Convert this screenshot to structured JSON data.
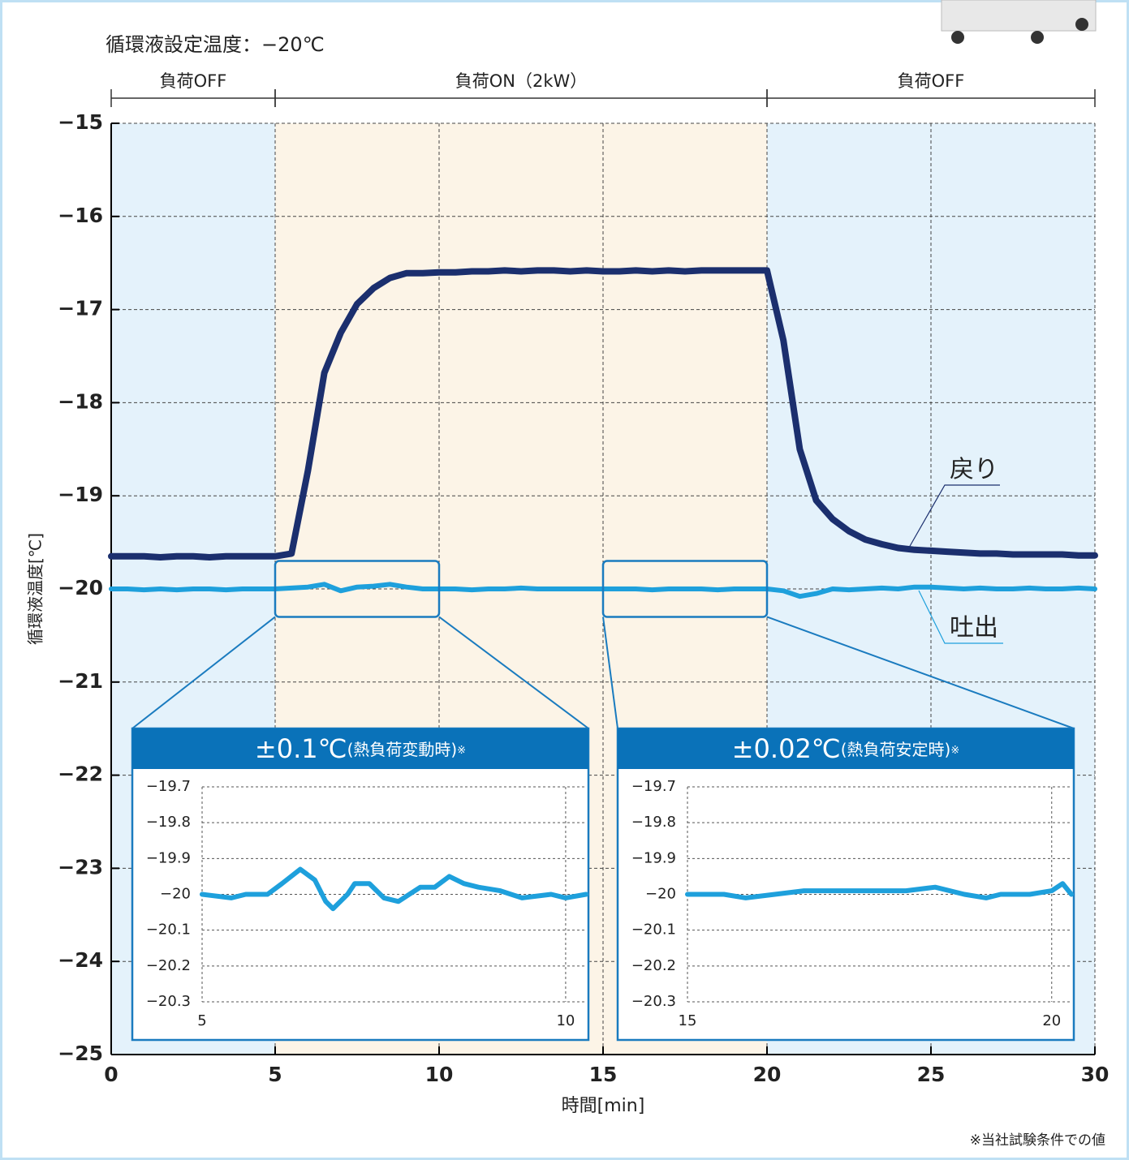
{
  "chart_data": [
    {
      "type": "line",
      "title": "循環液設定温度：−20℃",
      "x_label": "時間[min]",
      "y_label": "循環液温度[℃]",
      "note": "※当社試験条件での値",
      "regions": [
        {
          "label": "負荷OFF",
          "start": 0,
          "end": 5,
          "color": "#e4f2fb"
        },
        {
          "label": "負荷ON（2kW）",
          "start": 5,
          "end": 20,
          "color": "#fcf4e7"
        },
        {
          "label": "負荷OFF",
          "start": 20,
          "end": 30,
          "color": "#e4f2fb"
        }
      ],
      "x": [
        0,
        0.5,
        1,
        1.5,
        2,
        2.5,
        3,
        3.5,
        4,
        4.5,
        5,
        5.5,
        6,
        6.5,
        7,
        7.5,
        8,
        8.5,
        9,
        9.5,
        10,
        10.5,
        11,
        11.5,
        12,
        12.5,
        13,
        13.5,
        14,
        14.5,
        15,
        15.5,
        16,
        16.5,
        17,
        17.5,
        18,
        18.5,
        19,
        19.5,
        20,
        20.5,
        21,
        21.5,
        22,
        22.5,
        23,
        23.5,
        24,
        24.5,
        25,
        25.5,
        26,
        26.5,
        27,
        27.5,
        28,
        28.5,
        29,
        29.5,
        30
      ],
      "series": [
        {
          "name": "戻り",
          "color": "#1b2f6e",
          "values": [
            -19.65,
            -19.65,
            -19.65,
            -19.66,
            -19.65,
            -19.65,
            -19.66,
            -19.65,
            -19.65,
            -19.65,
            -19.65,
            -19.62,
            -18.73,
            -17.68,
            -17.25,
            -16.94,
            -16.77,
            -16.66,
            -16.61,
            -16.61,
            -16.6,
            -16.6,
            -16.59,
            -16.59,
            -16.58,
            -16.59,
            -16.58,
            -16.58,
            -16.59,
            -16.58,
            -16.59,
            -16.59,
            -16.58,
            -16.59,
            -16.58,
            -16.59,
            -16.58,
            -16.58,
            -16.58,
            -16.58,
            -16.58,
            -17.33,
            -18.5,
            -19.05,
            -19.25,
            -19.38,
            -19.47,
            -19.52,
            -19.56,
            -19.58,
            -19.59,
            -19.6,
            -19.61,
            -19.62,
            -19.62,
            -19.63,
            -19.63,
            -19.63,
            -19.63,
            -19.64,
            -19.64
          ]
        },
        {
          "name": "吐出",
          "color": "#1ea0dc",
          "values": [
            -20.0,
            -20.0,
            -20.01,
            -20.0,
            -20.01,
            -20.0,
            -20.0,
            -20.01,
            -20.0,
            -20.0,
            -20.0,
            -19.99,
            -19.98,
            -19.95,
            -20.02,
            -19.98,
            -19.97,
            -19.95,
            -19.98,
            -20.0,
            -20.0,
            -20.0,
            -20.01,
            -20.0,
            -20.0,
            -19.99,
            -20.0,
            -20.0,
            -20.0,
            -20.0,
            -20.0,
            -20.0,
            -20.0,
            -20.01,
            -20.0,
            -20.0,
            -20.0,
            -20.01,
            -20.0,
            -20.0,
            -20.0,
            -20.02,
            -20.08,
            -20.05,
            -20.0,
            -20.01,
            -20.0,
            -19.99,
            -20.0,
            -19.98,
            -19.98,
            -19.99,
            -20.0,
            -19.99,
            -20.0,
            -20.0,
            -19.99,
            -20.0,
            -20.0,
            -19.99,
            -20.0
          ]
        }
      ],
      "xlim": [
        0,
        30
      ],
      "ylim": [
        -25,
        -15
      ],
      "xticks": [
        0,
        5,
        10,
        15,
        20,
        25,
        30
      ],
      "yticks": [
        {
          "value": -15,
          "label": "−15"
        },
        {
          "value": -16,
          "label": "−16"
        },
        {
          "value": -17,
          "label": "−17"
        },
        {
          "value": -18,
          "label": "−18"
        },
        {
          "value": -19,
          "label": "−19"
        },
        {
          "value": -20,
          "label": "−20"
        },
        {
          "value": -21,
          "label": "−21"
        },
        {
          "value": -22,
          "label": "−22"
        },
        {
          "value": -23,
          "label": "−23"
        },
        {
          "value": -24,
          "label": "−24"
        },
        {
          "value": -25,
          "label": "−25"
        }
      ],
      "grid": true
    },
    {
      "type": "line",
      "title": "±0.1℃",
      "title_note": "(熱負荷変動時)",
      "title_mark": "※",
      "x": [
        5,
        5.4,
        5.6,
        5.9,
        6.1,
        6.35,
        6.55,
        6.7,
        6.8,
        7,
        7.1,
        7.3,
        7.5,
        7.7,
        8,
        8.2,
        8.4,
        8.6,
        8.8,
        9.1,
        9.4,
        9.8,
        10,
        10.28
      ],
      "series": [
        {
          "color": "#1ea0dc",
          "values": [
            -20.0,
            -20.01,
            -20.0,
            -20.0,
            -19.97,
            -19.93,
            -19.96,
            -20.02,
            -20.04,
            -20.0,
            -19.97,
            -19.97,
            -20.01,
            -20.02,
            -19.98,
            -19.98,
            -19.95,
            -19.97,
            -19.98,
            -19.99,
            -20.01,
            -20.0,
            -20.01,
            -20.0
          ]
        }
      ],
      "xlim": [
        5,
        10.28
      ],
      "ylim": [
        -20.3,
        -19.7
      ],
      "xticks": [
        5,
        10
      ],
      "yticks": [
        {
          "value": -19.7,
          "label": "−19.7"
        },
        {
          "value": -19.8,
          "label": "−19.8"
        },
        {
          "value": -19.9,
          "label": "−19.9"
        },
        {
          "value": -20,
          "label": "−20"
        },
        {
          "value": -20.1,
          "label": "−20.1"
        },
        {
          "value": -20.2,
          "label": "−20.2"
        },
        {
          "value": -20.3,
          "label": "−20.3"
        }
      ],
      "grid": true
    },
    {
      "type": "line",
      "title": "±0.02℃",
      "title_note": "(熱負荷安定時)",
      "title_mark": "※",
      "x": [
        15,
        15.5,
        15.8,
        16.2,
        16.6,
        17,
        17.5,
        18,
        18.4,
        18.8,
        19.1,
        19.3,
        19.7,
        20,
        20.15,
        20.27
      ],
      "series": [
        {
          "color": "#1ea0dc",
          "values": [
            -20.0,
            -20.0,
            -20.01,
            -20.0,
            -19.99,
            -19.99,
            -19.99,
            -19.99,
            -19.98,
            -20.0,
            -20.01,
            -20.0,
            -20.0,
            -19.99,
            -19.97,
            -20.0
          ]
        }
      ],
      "xlim": [
        15,
        20.27
      ],
      "ylim": [
        -20.3,
        -19.7
      ],
      "xticks": [
        15,
        20
      ],
      "yticks": [
        {
          "value": -19.7,
          "label": "−19.7"
        },
        {
          "value": -19.8,
          "label": "−19.8"
        },
        {
          "value": -19.9,
          "label": "−19.9"
        },
        {
          "value": -20,
          "label": "−20"
        },
        {
          "value": -20.1,
          "label": "−20.1"
        },
        {
          "value": -20.2,
          "label": "−20.2"
        },
        {
          "value": -20.3,
          "label": "−20.3"
        }
      ],
      "grid": true
    }
  ]
}
